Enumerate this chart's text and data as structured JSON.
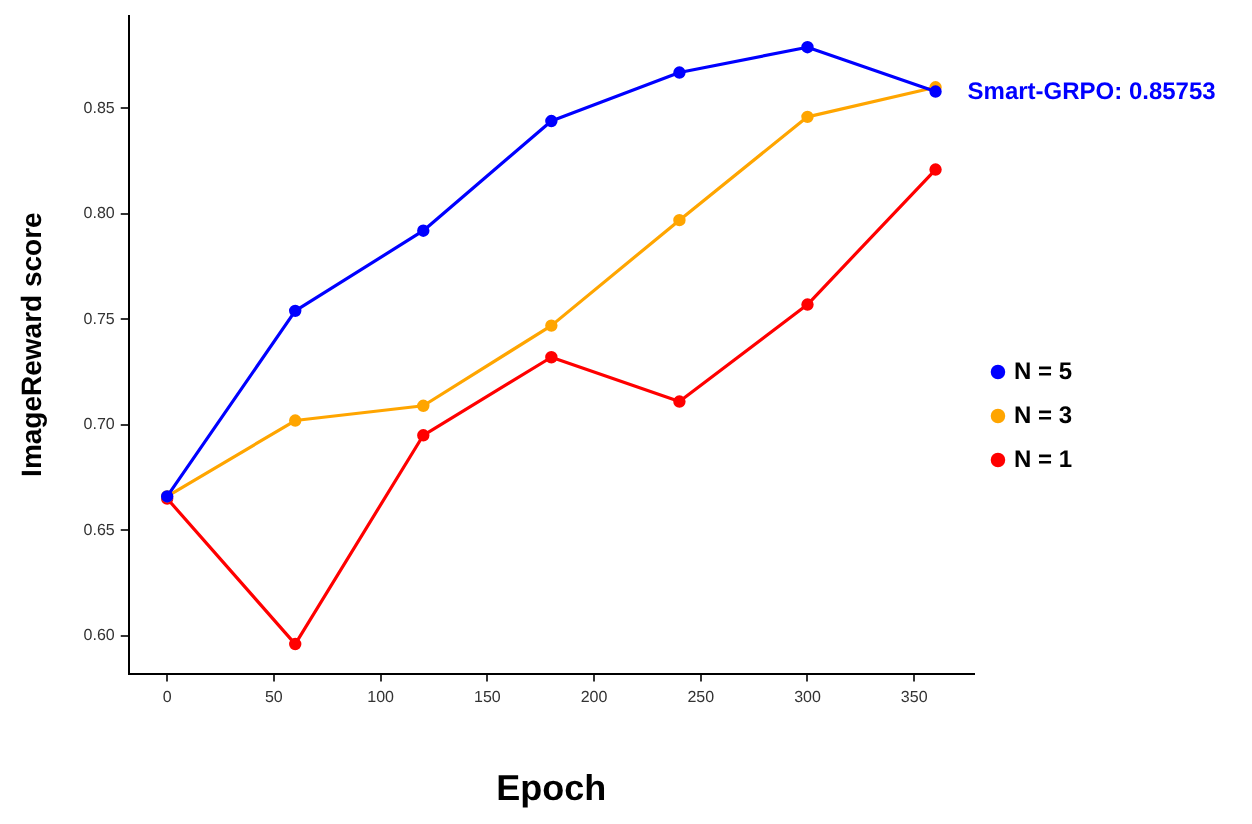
{
  "chart_data": {
    "type": "line",
    "xlabel": "Epoch",
    "ylabel": "ImageReward score",
    "x": [
      0,
      60,
      120,
      180,
      240,
      300,
      360
    ],
    "series": [
      {
        "name": "N = 5",
        "color": "#0000ff",
        "values": [
          0.666,
          0.754,
          0.792,
          0.844,
          0.867,
          0.879,
          0.858
        ]
      },
      {
        "name": "N = 3",
        "color": "#ffa500",
        "values": [
          0.666,
          0.702,
          0.709,
          0.747,
          0.797,
          0.846,
          0.86
        ]
      },
      {
        "name": "N = 1",
        "color": "#ff0000",
        "values": [
          0.665,
          0.596,
          0.695,
          0.732,
          0.711,
          0.757,
          0.821
        ]
      }
    ],
    "annotations": [
      {
        "text": "Smart-GRPO: 0.85753",
        "x": 360,
        "y": 0.85753
      }
    ],
    "xlim": [
      -18,
      378
    ],
    "xticks": [
      0,
      50,
      100,
      150,
      200,
      250,
      300,
      350
    ],
    "ylim": [
      0.582,
      0.894
    ],
    "yticks": [
      {
        "value": 0.6,
        "label": "0.60"
      },
      {
        "value": 0.65,
        "label": "0.65"
      },
      {
        "value": 0.7,
        "label": "0.70"
      },
      {
        "value": 0.75,
        "label": "0.75"
      },
      {
        "value": 0.8,
        "label": "0.80"
      },
      {
        "value": 0.85,
        "label": "0.85"
      }
    ],
    "legend": "right",
    "grid": false,
    "marker": "circle",
    "line_style": "solid"
  }
}
